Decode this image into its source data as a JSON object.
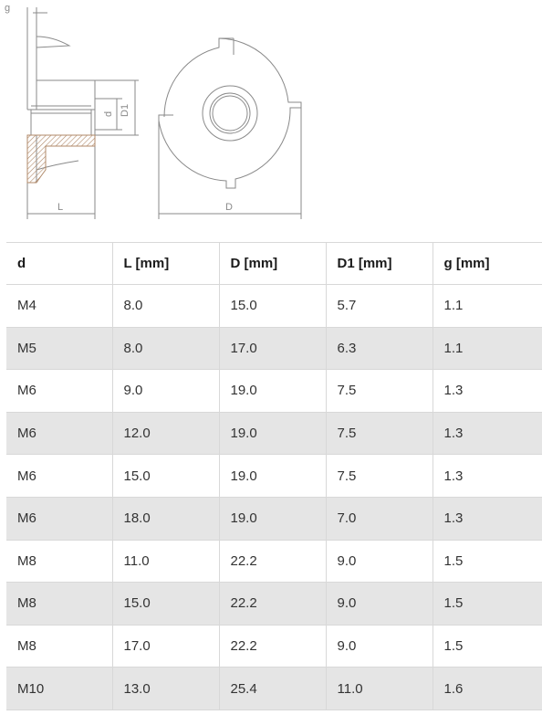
{
  "drawing": {
    "label_g": "g",
    "label_d": "d",
    "label_D1": "D1",
    "label_L": "L",
    "label_D": "D",
    "line_color": "#8a8a8a",
    "hatch_color": "#b08a6a"
  },
  "table": {
    "headers": [
      "d",
      "L [mm]",
      "D [mm]",
      "D1 [mm]",
      "g [mm]"
    ],
    "rows": [
      [
        "M4",
        "8.0",
        "15.0",
        "5.7",
        "1.1"
      ],
      [
        "M5",
        "8.0",
        "17.0",
        "6.3",
        "1.1"
      ],
      [
        "M6",
        "9.0",
        "19.0",
        "7.5",
        "1.3"
      ],
      [
        "M6",
        "12.0",
        "19.0",
        "7.5",
        "1.3"
      ],
      [
        "M6",
        "15.0",
        "19.0",
        "7.5",
        "1.3"
      ],
      [
        "M6",
        "18.0",
        "19.0",
        "7.0",
        "1.3"
      ],
      [
        "M8",
        "11.0",
        "22.2",
        "9.0",
        "1.5"
      ],
      [
        "M8",
        "15.0",
        "22.2",
        "9.0",
        "1.5"
      ],
      [
        "M8",
        "17.0",
        "22.2",
        "9.0",
        "1.5"
      ],
      [
        "M10",
        "13.0",
        "25.4",
        "11.0",
        "1.6"
      ]
    ],
    "shade_color": "#e5e5e5"
  }
}
